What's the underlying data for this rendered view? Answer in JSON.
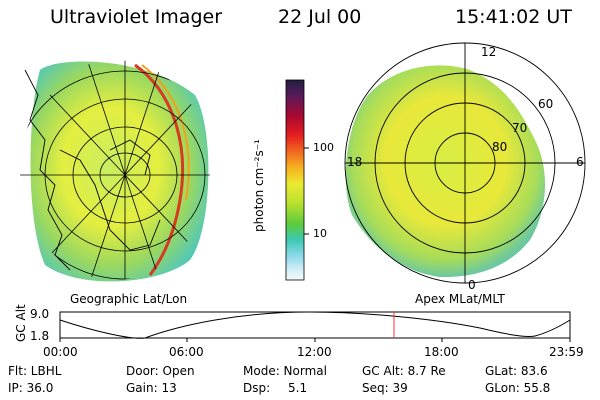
{
  "header": {
    "title": "Ultraviolet Imager",
    "date": "22 Jul 00",
    "time": "15:41:02 UT"
  },
  "panels": {
    "left_label": "Geographic Lat/Lon",
    "right_label": "Apex MLat/MLT"
  },
  "colorbar": {
    "unit_label": "photon cm⁻²s⁻¹",
    "ticks": [
      "100",
      "10"
    ]
  },
  "polar_labels": {
    "top": "12",
    "left": "18",
    "right": "6",
    "bottom": "0",
    "lat60": "60",
    "lat70": "70",
    "lat80": "80"
  },
  "altitude_plot": {
    "ylabel": "GC Alt",
    "ytick_top": "9.0",
    "ytick_bottom": "1.8",
    "xticks": [
      "00:00",
      "06:00",
      "12:00",
      "18:00",
      "23:59"
    ],
    "current_time_marker": "15:41",
    "marker_color": "#ff3333"
  },
  "info": {
    "row1": {
      "filter": "Flt: LBHL",
      "door": "Door: Open",
      "mode": "Mode: Normal",
      "gcalt": "GC Alt: 8.7 Re",
      "glat": "GLat: 83.6"
    },
    "row2": {
      "ip": "IP: 36.0",
      "gain": "Gain: 13",
      "dsp": "Dsp:",
      "dsp_val": "5.1",
      "seq": "Seq: 39",
      "glon": "GLon: 55.8"
    }
  }
}
